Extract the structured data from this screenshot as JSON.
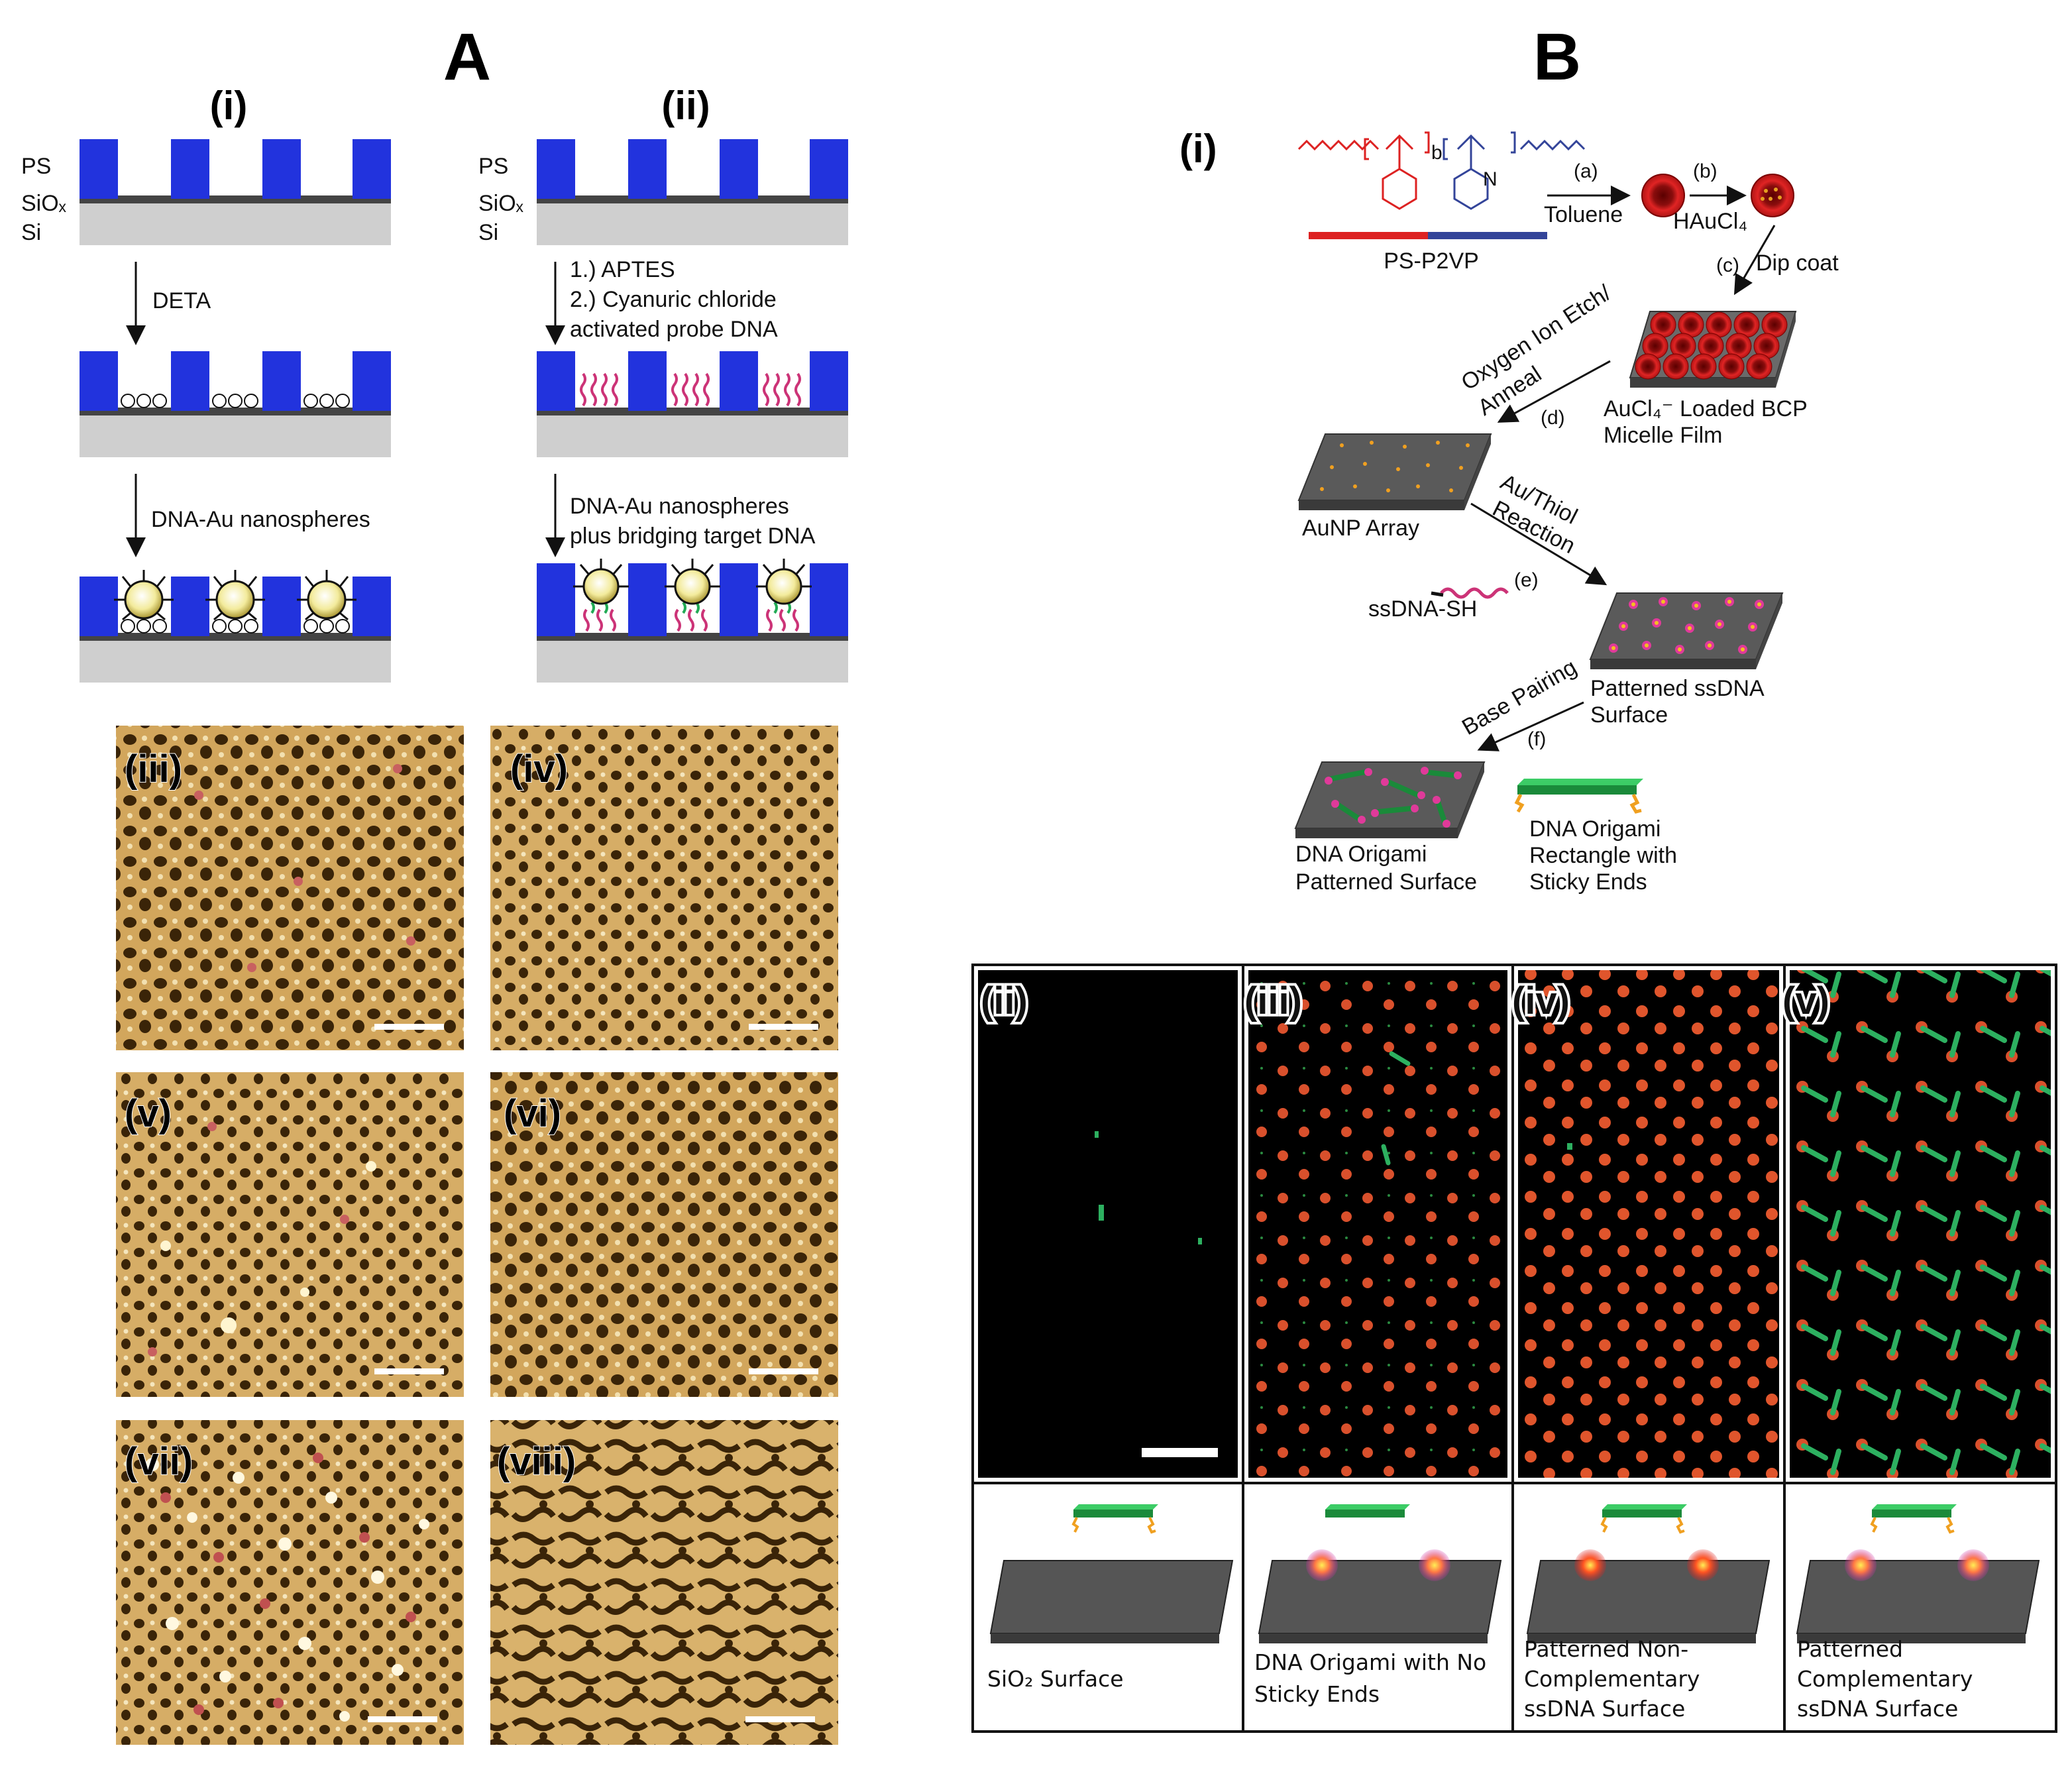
{
  "panel_a": {
    "letter": "A",
    "col_i": "(i)",
    "col_ii": "(ii)",
    "layers": {
      "ps": "PS",
      "siox": "SiOₓ",
      "si": "Si"
    },
    "step_deta": "DETA",
    "step_aptes": "1.) APTES",
    "step_cyanuric_1": "2.) Cyanuric chloride",
    "step_cyanuric_2": "activated probe DNA",
    "step_dna_au": "DNA-Au nanospheres",
    "step_dna_au_ii_1": "DNA-Au nanospheres",
    "step_dna_au_ii_2": "plus bridging target DNA",
    "afm_labels": [
      "(iii)",
      "(iv)",
      "(v)",
      "(vi)",
      "(vii)",
      "(viii)"
    ]
  },
  "panel_b": {
    "letter": "B",
    "scheme_label": "(i)",
    "polymer": "PS-P2VP",
    "step_a": "(a)",
    "toluene": "Toluene",
    "step_b": "(b)",
    "haucl4": "HAuCl₄",
    "step_c": "(c)",
    "dip_coat": "Dip coat",
    "bcp_film_1": "AuCl₄⁻ Loaded BCP",
    "bcp_film_2": "Micelle Film",
    "etch_1": "Oxygen Ion Etch/",
    "etch_2": "Anneal",
    "step_d": "(d)",
    "aunp_array": "AuNP Array",
    "thiol_1": "Au/Thiol",
    "thiol_2": "Reaction",
    "step_e": "(e)",
    "ssdna_sh": "ssDNA-SH",
    "pat_ssdna_1": "Patterned ssDNA",
    "pat_ssdna_2": "Surface",
    "base_pairing": "Base Pairing",
    "step_f": "(f)",
    "origami_surf_1": "DNA Origami",
    "origami_surf_2": "Patterned Surface",
    "origami_rect_1": "DNA Origami",
    "origami_rect_2": "Rectangle with",
    "origami_rect_3": "Sticky Ends",
    "image_labels": [
      "(ii)",
      "(iii)",
      "(iv)",
      "(v)"
    ],
    "bottom": {
      "c1": "SiO₂ Surface",
      "c2_1": "DNA Origami with No",
      "c2_2": "Sticky Ends",
      "c3_1": "Patterned Non-",
      "c3_2": "Complementary",
      "c3_3": "ssDNA Surface",
      "c4_1": "Patterned",
      "c4_2": "Complementary",
      "c4_3": "ssDNA Surface"
    }
  },
  "colors": {
    "ps_blue": "#2233dd",
    "si_gray": "#d0d0d0",
    "afm_bg": "#c89a50",
    "afm_pore": "#3a2408",
    "origami_green": "#22aa55",
    "au_red": "#dd3a22",
    "chip_gray": "#5a5a5a"
  }
}
